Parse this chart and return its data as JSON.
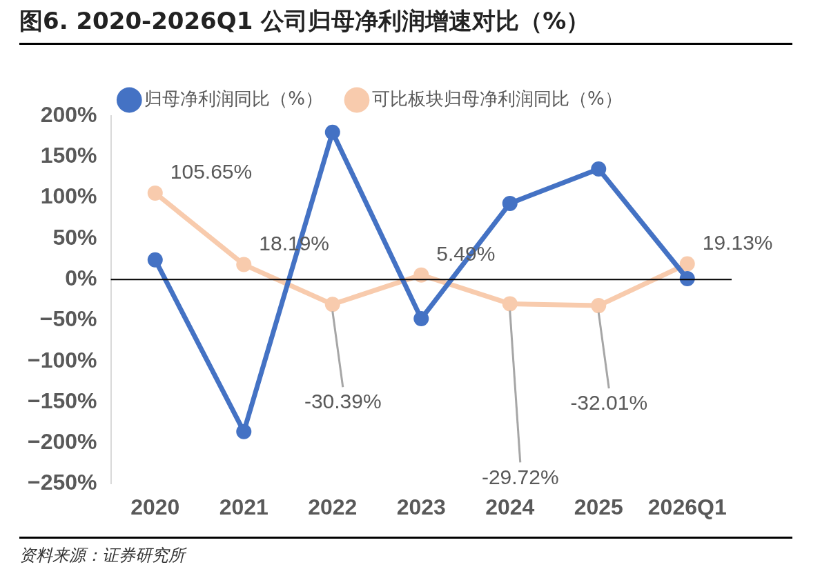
{
  "chart_data": {
    "type": "line",
    "title": "图6. 2020-2026Q1 公司归母净利润增速对比（%）",
    "categories": [
      "2020",
      "2021",
      "2022",
      "2023",
      "2024",
      "2025",
      "2026Q1"
    ],
    "series": [
      {
        "name": "归母净利润同比（%）",
        "color": "#4472c4",
        "values": [
          24,
          -186,
          180,
          -48,
          93,
          135,
          1
        ]
      },
      {
        "name": "可比板块归母净利润同比（%）",
        "color": "#f8cbad",
        "values": [
          105.65,
          18.19,
          -30.39,
          5.49,
          -29.72,
          -32.01,
          19.13
        ],
        "value_labels": [
          "105.65%",
          "18.19%",
          "-30.39%",
          "5.49%",
          "-29.72%",
          "-32.01%",
          "19.13%"
        ]
      }
    ],
    "ylim": [
      -250,
      200
    ],
    "yticks": [
      {
        "value": 200,
        "label": "200%"
      },
      {
        "value": 150,
        "label": "150%"
      },
      {
        "value": 100,
        "label": "100%"
      },
      {
        "value": 50,
        "label": "50%"
      },
      {
        "value": 0,
        "label": "0%"
      },
      {
        "value": -50,
        "label": "−50%"
      },
      {
        "value": -100,
        "label": "−100%"
      },
      {
        "value": -150,
        "label": "−150%"
      },
      {
        "value": -200,
        "label": "−200%"
      },
      {
        "value": -250,
        "label": "−250%"
      }
    ],
    "ref_lines": [
      {
        "axis": "y",
        "value": 0,
        "color": "#000000"
      }
    ],
    "grid": false,
    "legend": "top",
    "marker": "circle",
    "line_style": "solid",
    "annotations": [
      "资料来源：证券研究所"
    ]
  }
}
